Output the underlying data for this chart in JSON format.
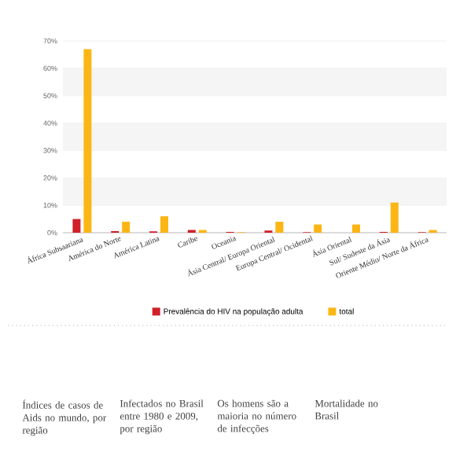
{
  "chart_data": {
    "type": "bar",
    "categories": [
      "África Subsaariana",
      "América do Norte",
      "América Latina",
      "Caribe",
      "Oceania",
      "Ásia Central/ Europa Oriental",
      "Europa Central/ Ocidental",
      "Ásia Oriental",
      "Sul/ Sudeste da Ásia",
      "Oriente Médio/ Norte da África"
    ],
    "series": [
      {
        "name": "Prevalência do HIV na população adulta",
        "color": "#d0202a",
        "values": [
          5.0,
          0.6,
          0.5,
          1.0,
          0.3,
          0.8,
          0.2,
          null,
          0.3,
          0.2
        ]
      },
      {
        "name": "total",
        "color": "#fbb616",
        "values": [
          67,
          4,
          6,
          1,
          0.2,
          4,
          3,
          3,
          11,
          1
        ]
      }
    ],
    "ylim": [
      0,
      70
    ],
    "yticks": [
      {
        "value": 0,
        "label": "0%"
      },
      {
        "value": 10,
        "label": "10%"
      },
      {
        "value": 20,
        "label": "20%"
      },
      {
        "value": 30,
        "label": "30%"
      },
      {
        "value": 40,
        "label": "40%"
      },
      {
        "value": 50,
        "label": "50%"
      },
      {
        "value": 60,
        "label": "60%"
      },
      {
        "value": 70,
        "label": "70%"
      }
    ],
    "grid": "y",
    "legend": "bottom",
    "annotations": [
      "Índices de casos de Aids no mundo, por região",
      "Infectados no Brasil entre 1980 e 2009, por região",
      "Os homens são a maioria no número de infecções",
      "Mortalidade no Brasil"
    ]
  }
}
